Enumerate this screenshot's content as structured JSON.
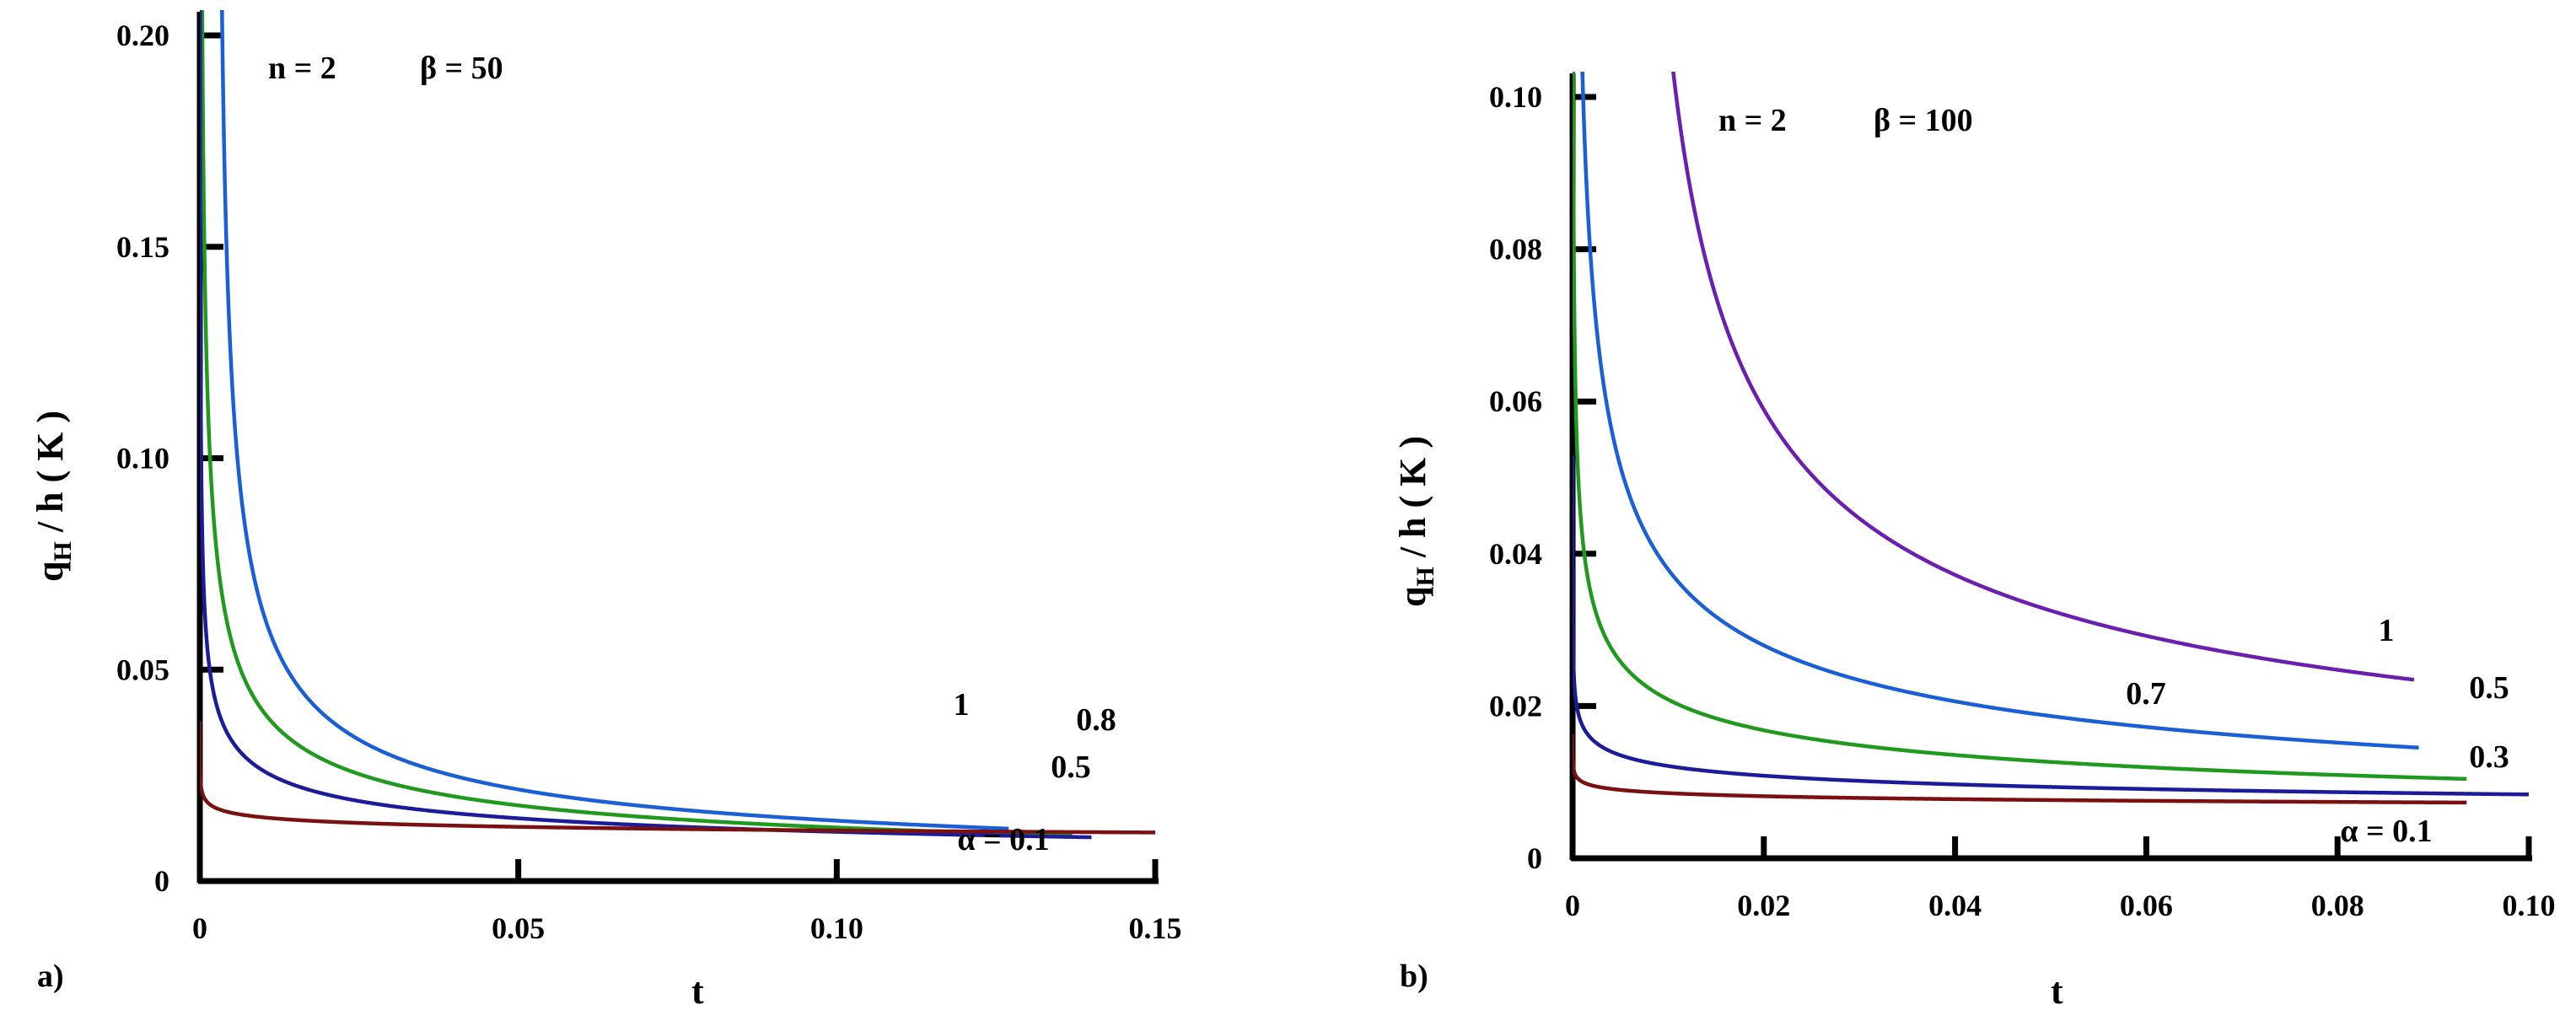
{
  "chart_data": [
    {
      "type": "line",
      "panel_label": "a)",
      "title_n": "n = 2",
      "title_beta": "β = 50",
      "xlabel": "t",
      "ylabel_main": "q",
      "ylabel_sub": "H",
      "ylabel_rest": " / h  ( K )",
      "xlim": [
        0,
        0.15
      ],
      "ylim": [
        0,
        0.2
      ],
      "xticks": [
        0,
        0.05,
        0.1,
        0.15
      ],
      "xtick_labels": [
        "0",
        "0.05",
        "0.10",
        "0.15"
      ],
      "yticks": [
        0,
        0.05,
        0.1,
        0.15,
        0.2
      ],
      "ytick_labels": [
        "0",
        "0.05",
        "0.10",
        "0.15",
        "0.20"
      ],
      "series": [
        {
          "name": "1",
          "label": "1",
          "color": "#1a5fd6",
          "A": 0.0037,
          "p": 0.58,
          "t0": 0.0025,
          "t_end": 0.127
        },
        {
          "name": "0.8",
          "label": "0.8",
          "color": "#1f9a1f",
          "A": 0.004,
          "p": 0.5,
          "t0": 0.0,
          "t_end": 0.137
        },
        {
          "name": "0.5",
          "label": "0.5",
          "color": "#1c1c9a",
          "A": 0.0052,
          "p": 0.35,
          "t0": 0.0,
          "t_end": 0.14
        },
        {
          "name": "0.1",
          "label": "α = 0.1",
          "color": "#7a1010",
          "A": 0.0095,
          "p": 0.1,
          "t0": 0.0,
          "t_end": 0.15
        }
      ]
    },
    {
      "type": "line",
      "panel_label": "b)",
      "title_n": "n = 2",
      "title_beta": "β = 100",
      "xlabel": "t",
      "ylabel_main": "q",
      "ylabel_sub": "H",
      "ylabel_rest": " / h  ( K )",
      "xlim": [
        0,
        0.1
      ],
      "ylim": [
        0,
        0.1
      ],
      "xticks": [
        0,
        0.02,
        0.04,
        0.06,
        0.08,
        0.1
      ],
      "xtick_labels": [
        "0",
        "0.02",
        "0.04",
        "0.06",
        "0.08",
        "0.10"
      ],
      "yticks": [
        0,
        0.02,
        0.04,
        0.06,
        0.08,
        0.1
      ],
      "ytick_labels": [
        "0",
        "0.02",
        "0.04",
        "0.06",
        "0.08",
        "0.10"
      ],
      "series": [
        {
          "name": "1",
          "label": "1",
          "color": "#6a1fb0",
          "A": 0.00625,
          "p": 0.53,
          "t0": 0.0055,
          "t_end": 0.088
        },
        {
          "name": "0.7",
          "label": "0.7",
          "color": "#1a5fd6",
          "A": 0.005,
          "p": 0.44,
          "t0": 0.0,
          "t_end": 0.0885
        },
        {
          "name": "0.5",
          "label": "0.5",
          "color": "#1f9a1f",
          "A": 0.005,
          "p": 0.31,
          "t0": 0.0,
          "t_end": 0.0935
        },
        {
          "name": "0.3",
          "label": "0.3",
          "color": "#1c1c9a",
          "A": 0.0058,
          "p": 0.16,
          "t0": 0.0,
          "t_end": 0.1
        },
        {
          "name": "0.1",
          "label": "α = 0.1",
          "color": "#7a1010",
          "A": 0.0062,
          "p": 0.07,
          "t0": 0.0,
          "t_end": 0.0935
        }
      ]
    }
  ]
}
